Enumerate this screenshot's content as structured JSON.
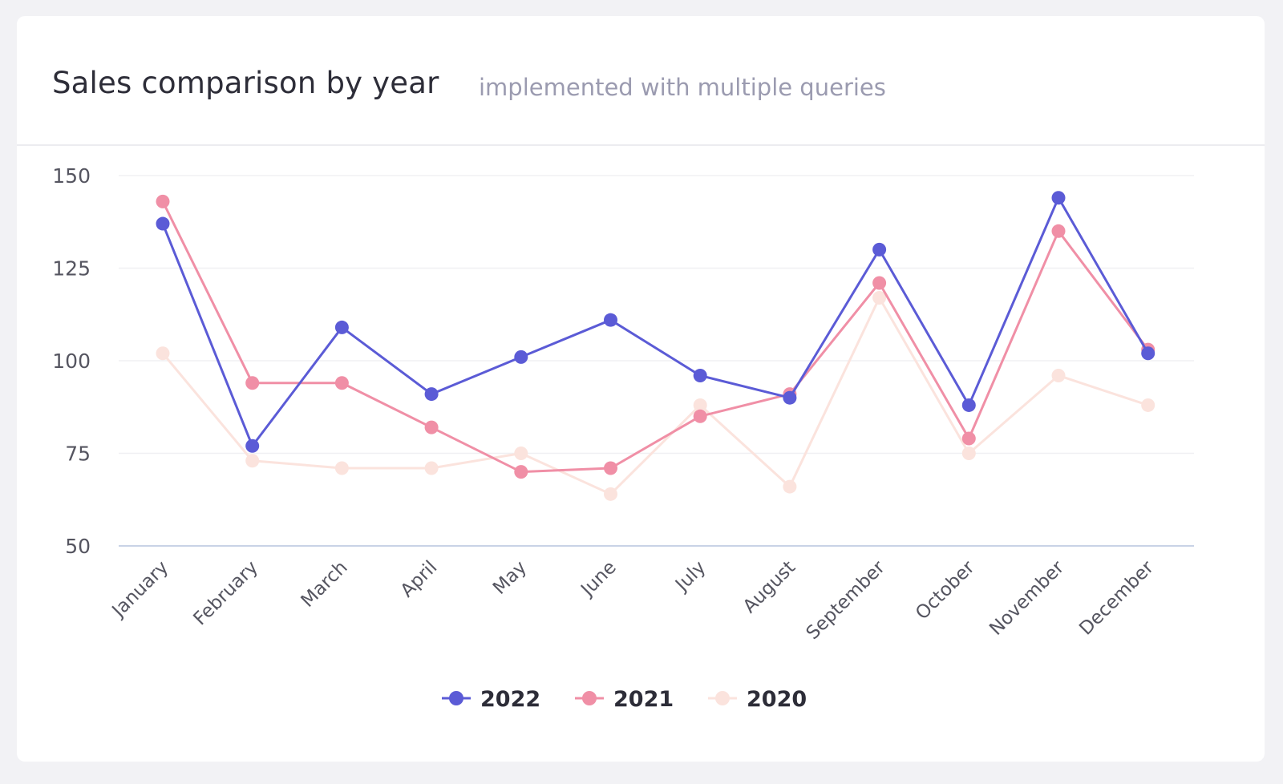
{
  "card": {
    "title": "Sales comparison by year",
    "subtitle": "implemented with multiple queries"
  },
  "chart_data": {
    "type": "line",
    "categories": [
      "January",
      "February",
      "March",
      "April",
      "May",
      "June",
      "July",
      "August",
      "September",
      "October",
      "November",
      "December"
    ],
    "ylim": [
      50,
      150
    ],
    "yticks": [
      50,
      75,
      100,
      125,
      150
    ],
    "grid": true,
    "legend_position": "bottom-center",
    "title": "",
    "xlabel": "",
    "ylabel": "",
    "series": [
      {
        "name": "2022",
        "color": "#5b5bd6",
        "values": [
          137,
          77,
          109,
          91,
          101,
          111,
          96,
          90,
          130,
          88,
          144,
          102
        ]
      },
      {
        "name": "2021",
        "color": "#f08fa6",
        "values": [
          143,
          94,
          94,
          82,
          70,
          71,
          85,
          91,
          121,
          79,
          135,
          103
        ]
      },
      {
        "name": "2020",
        "color": "#fbe3dd",
        "values": [
          102,
          73,
          71,
          71,
          75,
          64,
          88,
          66,
          117,
          75,
          96,
          88
        ]
      }
    ]
  }
}
